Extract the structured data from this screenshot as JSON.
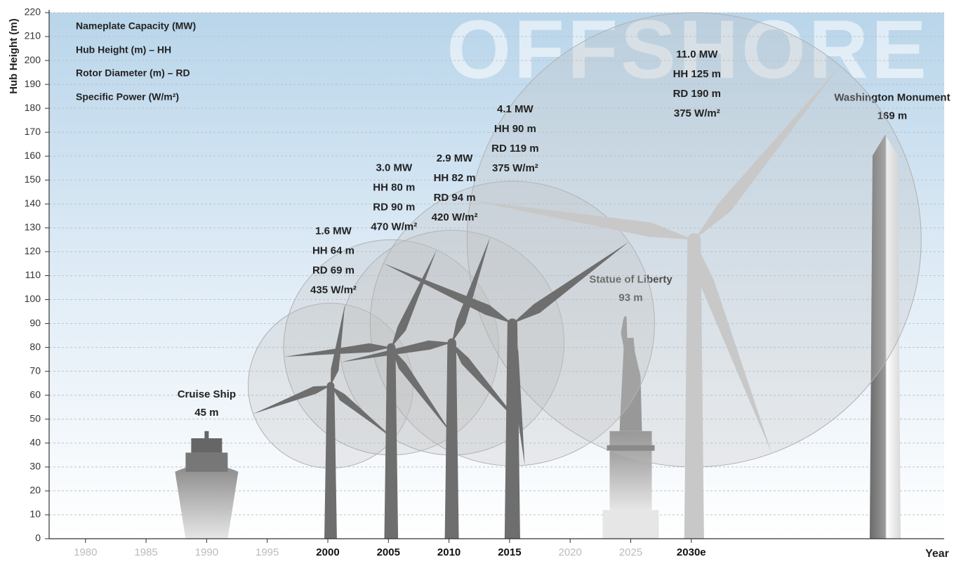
{
  "chart_data": {
    "type": "turbine-growth",
    "y_label": "Hub Height (m)",
    "x_label": "Year",
    "watermark": "OFFSHORE",
    "legend": [
      "Nameplate Capacity (MW)",
      "Hub Height (m) – HH",
      "Rotor Diameter (m) – RD",
      "Specific Power (W/m²)"
    ],
    "xlim": [
      1977,
      2050
    ],
    "xticks": [
      1980,
      1985,
      1990,
      1995,
      2000,
      2005,
      2010,
      2015,
      2020,
      2025,
      {
        "value": 2030,
        "label": "2030e"
      }
    ],
    "emphasized_xticks": [
      2000,
      2005,
      2010,
      2015,
      2030
    ],
    "ylim": [
      0,
      220
    ],
    "yticks": [
      0,
      10,
      20,
      30,
      40,
      50,
      60,
      70,
      80,
      90,
      100,
      110,
      120,
      130,
      140,
      150,
      160,
      170,
      180,
      190,
      200,
      210,
      220
    ],
    "grid": true,
    "turbines": [
      {
        "x": 2000,
        "capacity_label": "1.6 MW",
        "hub_height": 64,
        "hub_height_label": "HH 64 m",
        "rotor_diameter": 69,
        "rotor_diameter_label": "RD 69 m",
        "specific_power_label": "435 W/m²",
        "color": "#6e6e6e"
      },
      {
        "x": 2005,
        "capacity_label": "3.0 MW",
        "hub_height": 80,
        "hub_height_label": "HH 80 m",
        "rotor_diameter": 90,
        "rotor_diameter_label": "RD 90 m",
        "specific_power_label": "470 W/m²",
        "color": "#6e6e6e"
      },
      {
        "x": 2010,
        "capacity_label": "2.9 MW",
        "hub_height": 82,
        "hub_height_label": "HH 82 m",
        "rotor_diameter": 94,
        "rotor_diameter_label": "RD 94 m",
        "specific_power_label": "420 W/m²",
        "color": "#6e6e6e"
      },
      {
        "x": 2015,
        "capacity_label": "4.1 MW",
        "hub_height": 90,
        "hub_height_label": "HH 90 m",
        "rotor_diameter": 119,
        "rotor_diameter_label": "RD 119 m",
        "specific_power_label": "375 W/m²",
        "color": "#6e6e6e"
      },
      {
        "x": 2030,
        "capacity_label": "11.0 MW",
        "hub_height": 125,
        "hub_height_label": "HH 125 m",
        "rotor_diameter": 190,
        "rotor_diameter_label": "RD 190 m",
        "specific_power_label": "375 W/m²",
        "color": "#c8c8c8"
      }
    ],
    "landmarks": [
      {
        "name": "Cruise Ship",
        "x": 1990,
        "height": 45,
        "height_label": "45 m"
      },
      {
        "name": "Statue of Liberty",
        "x": 2025,
        "height": 93,
        "height_label": "93 m"
      },
      {
        "name": "Washington Monument",
        "x": 2046,
        "height": 169,
        "height_label": "169 m"
      }
    ]
  }
}
